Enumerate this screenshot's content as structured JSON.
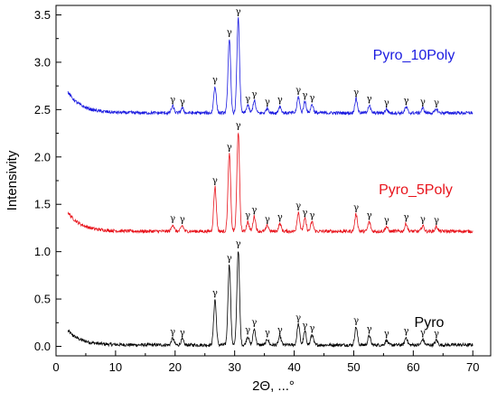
{
  "chart_data": {
    "type": "line",
    "title": "",
    "xlabel": "2Θ, ...°",
    "ylabel": "Intensivity",
    "xlim": [
      0,
      73
    ],
    "ylim": [
      -0.1,
      3.6
    ],
    "xticks": [
      0,
      10,
      20,
      30,
      40,
      50,
      60,
      70
    ],
    "yticks": [
      0.0,
      0.5,
      1.0,
      1.5,
      2.0,
      2.5,
      3.0,
      3.5
    ],
    "grid": false,
    "legend": "none",
    "peak_label": "γ",
    "peak_positions": [
      19.6,
      21.2,
      26.7,
      29.1,
      30.6,
      32.2,
      33.3,
      35.5,
      37.6,
      40.7,
      41.8,
      43.0,
      50.4,
      52.6,
      55.5,
      58.8,
      61.6,
      63.9
    ],
    "series": [
      {
        "name": "Pyro",
        "color": "#000000",
        "offset": 0.0,
        "baseline_start": 0.15,
        "peaks": [
          [
            19.6,
            0.07
          ],
          [
            21.2,
            0.06
          ],
          [
            26.7,
            0.48
          ],
          [
            29.1,
            0.85
          ],
          [
            30.6,
            1.0
          ],
          [
            32.2,
            0.09
          ],
          [
            33.3,
            0.17
          ],
          [
            35.5,
            0.06
          ],
          [
            37.6,
            0.09
          ],
          [
            40.7,
            0.22
          ],
          [
            41.8,
            0.14
          ],
          [
            43.0,
            0.11
          ],
          [
            50.4,
            0.19
          ],
          [
            52.6,
            0.1
          ],
          [
            55.5,
            0.05
          ],
          [
            58.8,
            0.08
          ],
          [
            61.6,
            0.06
          ],
          [
            63.9,
            0.05
          ]
        ]
      },
      {
        "name": "Pyro_5Poly",
        "color": "#e8141c",
        "offset": 1.2,
        "baseline_start": 0.2,
        "peaks": [
          [
            19.6,
            0.07
          ],
          [
            21.2,
            0.06
          ],
          [
            26.7,
            0.47
          ],
          [
            29.1,
            0.82
          ],
          [
            30.6,
            1.05
          ],
          [
            32.2,
            0.1
          ],
          [
            33.3,
            0.16
          ],
          [
            35.5,
            0.06
          ],
          [
            37.6,
            0.08
          ],
          [
            40.7,
            0.2
          ],
          [
            41.8,
            0.13
          ],
          [
            43.0,
            0.1
          ],
          [
            50.4,
            0.18
          ],
          [
            52.6,
            0.1
          ],
          [
            55.5,
            0.05
          ],
          [
            58.8,
            0.08
          ],
          [
            61.6,
            0.06
          ],
          [
            63.9,
            0.05
          ]
        ]
      },
      {
        "name": "Pyro_10Poly",
        "color": "#1c1ce0",
        "offset": 2.45,
        "baseline_start": 0.22,
        "peaks": [
          [
            19.6,
            0.07
          ],
          [
            21.2,
            0.05
          ],
          [
            26.7,
            0.28
          ],
          [
            29.1,
            0.78
          ],
          [
            30.6,
            1.0
          ],
          [
            32.2,
            0.08
          ],
          [
            33.3,
            0.13
          ],
          [
            35.5,
            0.05
          ],
          [
            37.6,
            0.07
          ],
          [
            40.7,
            0.17
          ],
          [
            41.8,
            0.12
          ],
          [
            43.0,
            0.09
          ],
          [
            50.4,
            0.15
          ],
          [
            52.6,
            0.08
          ],
          [
            55.5,
            0.04
          ],
          [
            58.8,
            0.06
          ],
          [
            61.6,
            0.05
          ],
          [
            63.9,
            0.04
          ]
        ]
      }
    ]
  }
}
